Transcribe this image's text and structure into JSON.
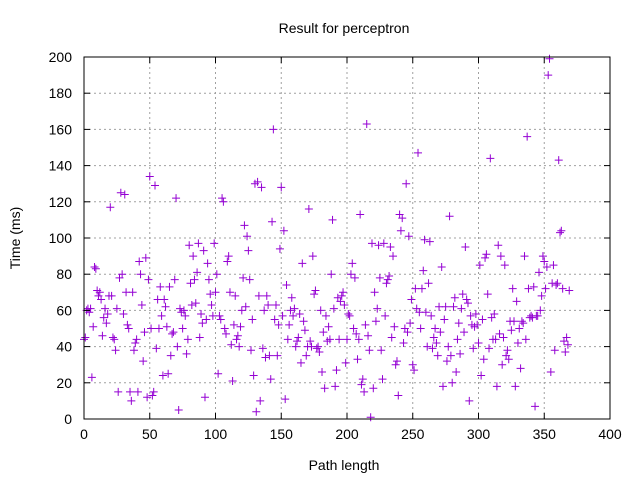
{
  "chart_data": {
    "type": "scatter",
    "title": "Result for perceptron",
    "xlabel": "Path length",
    "ylabel": "Time (ms)",
    "xlim": [
      0,
      400
    ],
    "ylim": [
      0,
      200
    ],
    "xticks": [
      0,
      50,
      100,
      150,
      200,
      250,
      300,
      350,
      400
    ],
    "yticks": [
      0,
      20,
      40,
      60,
      80,
      100,
      120,
      140,
      160,
      180,
      200
    ],
    "grid": true,
    "legend": "none",
    "marker": "plus",
    "color": "#9400d3",
    "points": [
      [
        0,
        44
      ],
      [
        1,
        45
      ],
      [
        2,
        60
      ],
      [
        3,
        61
      ],
      [
        4,
        59
      ],
      [
        5,
        61
      ],
      [
        6,
        23
      ],
      [
        7,
        51
      ],
      [
        8,
        84
      ],
      [
        9,
        83
      ],
      [
        10,
        71
      ],
      [
        11,
        68
      ],
      [
        12,
        70
      ],
      [
        13,
        66
      ],
      [
        14,
        46
      ],
      [
        15,
        56
      ],
      [
        16,
        61
      ],
      [
        17,
        53
      ],
      [
        18,
        58
      ],
      [
        19,
        68
      ],
      [
        20,
        117
      ],
      [
        21,
        68
      ],
      [
        22,
        45
      ],
      [
        23,
        44
      ],
      [
        24,
        38
      ],
      [
        25,
        61
      ],
      [
        26,
        15
      ],
      [
        27,
        78
      ],
      [
        28,
        125
      ],
      [
        29,
        80
      ],
      [
        30,
        58
      ],
      [
        31,
        124
      ],
      [
        32,
        70
      ],
      [
        33,
        52
      ],
      [
        34,
        50
      ],
      [
        35,
        15
      ],
      [
        36,
        10
      ],
      [
        37,
        70
      ],
      [
        38,
        38
      ],
      [
        39,
        42
      ],
      [
        40,
        44
      ],
      [
        41,
        15
      ],
      [
        42,
        87
      ],
      [
        43,
        80
      ],
      [
        44,
        63
      ],
      [
        45,
        32
      ],
      [
        46,
        48
      ],
      [
        47,
        89
      ],
      [
        48,
        12
      ],
      [
        49,
        77
      ],
      [
        50,
        134
      ],
      [
        51,
        50
      ],
      [
        52,
        13
      ],
      [
        53,
        15
      ],
      [
        54,
        129
      ],
      [
        55,
        39
      ],
      [
        56,
        66
      ],
      [
        57,
        50
      ],
      [
        58,
        73
      ],
      [
        59,
        57
      ],
      [
        60,
        24
      ],
      [
        61,
        66
      ],
      [
        62,
        62
      ],
      [
        63,
        51
      ],
      [
        64,
        25
      ],
      [
        65,
        73
      ],
      [
        66,
        35
      ],
      [
        67,
        47
      ],
      [
        68,
        48
      ],
      [
        69,
        77
      ],
      [
        70,
        122
      ],
      [
        71,
        40
      ],
      [
        72,
        5
      ],
      [
        73,
        61
      ],
      [
        74,
        59
      ],
      [
        75,
        50
      ],
      [
        76,
        60
      ],
      [
        77,
        57
      ],
      [
        78,
        36
      ],
      [
        79,
        44
      ],
      [
        80,
        96
      ],
      [
        81,
        75
      ],
      [
        82,
        63
      ],
      [
        83,
        90
      ],
      [
        84,
        77
      ],
      [
        85,
        64
      ],
      [
        86,
        81
      ],
      [
        87,
        97
      ],
      [
        88,
        45
      ],
      [
        89,
        58
      ],
      [
        90,
        53
      ],
      [
        91,
        93
      ],
      [
        92,
        12
      ],
      [
        93,
        55
      ],
      [
        94,
        86
      ],
      [
        95,
        77
      ],
      [
        96,
        69
      ],
      [
        97,
        63
      ],
      [
        98,
        57
      ],
      [
        99,
        97
      ],
      [
        100,
        70
      ],
      [
        101,
        80
      ],
      [
        102,
        25
      ],
      [
        103,
        57
      ],
      [
        104,
        55
      ],
      [
        105,
        122
      ],
      [
        106,
        120
      ],
      [
        107,
        50
      ],
      [
        108,
        47
      ],
      [
        109,
        87
      ],
      [
        110,
        90
      ],
      [
        111,
        70
      ],
      [
        112,
        41
      ],
      [
        113,
        21
      ],
      [
        114,
        52
      ],
      [
        115,
        68
      ],
      [
        116,
        44
      ],
      [
        117,
        46
      ],
      [
        118,
        40
      ],
      [
        119,
        51
      ],
      [
        120,
        60
      ],
      [
        121,
        78
      ],
      [
        122,
        107
      ],
      [
        123,
        62
      ],
      [
        124,
        101
      ],
      [
        125,
        93
      ],
      [
        126,
        77
      ],
      [
        127,
        38
      ],
      [
        128,
        55
      ],
      [
        129,
        24
      ],
      [
        130,
        130
      ],
      [
        131,
        4
      ],
      [
        132,
        131
      ],
      [
        133,
        68
      ],
      [
        134,
        10
      ],
      [
        135,
        128
      ],
      [
        136,
        39
      ],
      [
        137,
        60
      ],
      [
        138,
        34
      ],
      [
        139,
        68
      ],
      [
        140,
        63
      ],
      [
        141,
        35
      ],
      [
        142,
        22
      ],
      [
        143,
        109
      ],
      [
        144,
        160
      ],
      [
        145,
        55
      ],
      [
        146,
        63
      ],
      [
        147,
        35
      ],
      [
        148,
        52
      ],
      [
        149,
        94
      ],
      [
        150,
        128
      ],
      [
        151,
        57
      ],
      [
        152,
        104
      ],
      [
        153,
        11
      ],
      [
        154,
        74
      ],
      [
        155,
        44
      ],
      [
        156,
        52
      ],
      [
        157,
        60
      ],
      [
        158,
        67
      ],
      [
        159,
        57
      ],
      [
        160,
        61
      ],
      [
        161,
        40
      ],
      [
        162,
        43
      ],
      [
        163,
        45
      ],
      [
        164,
        58
      ],
      [
        165,
        31
      ],
      [
        166,
        86
      ],
      [
        167,
        54
      ],
      [
        168,
        49
      ],
      [
        169,
        35
      ],
      [
        170,
        40
      ],
      [
        171,
        116
      ],
      [
        172,
        43
      ],
      [
        173,
        40
      ],
      [
        174,
        90
      ],
      [
        175,
        69
      ],
      [
        176,
        71
      ],
      [
        177,
        39
      ],
      [
        178,
        40
      ],
      [
        179,
        37
      ],
      [
        180,
        60
      ],
      [
        181,
        26
      ],
      [
        182,
        48
      ],
      [
        183,
        17
      ],
      [
        184,
        57
      ],
      [
        185,
        43
      ],
      [
        186,
        51
      ],
      [
        187,
        44
      ],
      [
        188,
        80
      ],
      [
        189,
        110
      ],
      [
        190,
        61
      ],
      [
        191,
        18
      ],
      [
        192,
        27
      ],
      [
        193,
        67
      ],
      [
        194,
        44
      ],
      [
        195,
        65
      ],
      [
        196,
        68
      ],
      [
        197,
        70
      ],
      [
        198,
        63
      ],
      [
        199,
        31
      ],
      [
        200,
        44
      ],
      [
        201,
        58
      ],
      [
        202,
        57
      ],
      [
        203,
        80
      ],
      [
        204,
        86
      ],
      [
        205,
        50
      ],
      [
        206,
        78
      ],
      [
        207,
        47
      ],
      [
        208,
        33
      ],
      [
        209,
        44
      ],
      [
        210,
        113
      ],
      [
        211,
        19
      ],
      [
        212,
        22
      ],
      [
        213,
        15
      ],
      [
        214,
        52
      ],
      [
        215,
        163
      ],
      [
        216,
        46
      ],
      [
        217,
        38
      ],
      [
        218,
        1
      ],
      [
        219,
        97
      ],
      [
        220,
        17
      ],
      [
        221,
        70
      ],
      [
        222,
        54
      ],
      [
        223,
        61
      ],
      [
        224,
        96
      ],
      [
        225,
        78
      ],
      [
        226,
        38
      ],
      [
        227,
        22
      ],
      [
        228,
        97
      ],
      [
        229,
        57
      ],
      [
        230,
        75
      ],
      [
        231,
        77
      ],
      [
        232,
        79
      ],
      [
        233,
        95
      ],
      [
        234,
        45
      ],
      [
        235,
        90
      ],
      [
        236,
        51
      ],
      [
        237,
        30
      ],
      [
        238,
        32
      ],
      [
        239,
        13
      ],
      [
        240,
        113
      ],
      [
        241,
        104
      ],
      [
        242,
        111
      ],
      [
        243,
        42
      ],
      [
        244,
        50
      ],
      [
        245,
        130
      ],
      [
        246,
        48
      ],
      [
        247,
        101
      ],
      [
        248,
        53
      ],
      [
        249,
        66
      ],
      [
        250,
        30
      ],
      [
        251,
        27
      ],
      [
        252,
        72
      ],
      [
        253,
        61
      ],
      [
        254,
        147
      ],
      [
        255,
        59
      ],
      [
        256,
        50
      ],
      [
        257,
        72
      ],
      [
        258,
        82
      ],
      [
        259,
        99
      ],
      [
        260,
        59
      ],
      [
        261,
        40
      ],
      [
        262,
        75
      ],
      [
        263,
        98
      ],
      [
        264,
        57
      ],
      [
        265,
        39
      ],
      [
        266,
        45
      ],
      [
        267,
        50
      ],
      [
        268,
        42
      ],
      [
        269,
        35
      ],
      [
        270,
        62
      ],
      [
        271,
        48
      ],
      [
        272,
        84
      ],
      [
        273,
        18
      ],
      [
        274,
        55
      ],
      [
        275,
        62
      ],
      [
        276,
        32
      ],
      [
        277,
        40
      ],
      [
        278,
        112
      ],
      [
        279,
        35
      ],
      [
        280,
        20
      ],
      [
        281,
        62
      ],
      [
        282,
        67
      ],
      [
        283,
        26
      ],
      [
        284,
        44
      ],
      [
        285,
        53
      ],
      [
        286,
        36
      ],
      [
        287,
        61
      ],
      [
        288,
        69
      ],
      [
        289,
        48
      ],
      [
        290,
        95
      ],
      [
        291,
        66
      ],
      [
        292,
        64
      ],
      [
        293,
        10
      ],
      [
        294,
        57
      ],
      [
        295,
        52
      ],
      [
        296,
        39
      ],
      [
        297,
        51
      ],
      [
        298,
        58
      ],
      [
        299,
        52
      ],
      [
        300,
        42
      ],
      [
        301,
        85
      ],
      [
        302,
        24
      ],
      [
        303,
        55
      ],
      [
        304,
        33
      ],
      [
        305,
        89
      ],
      [
        306,
        91
      ],
      [
        307,
        69
      ],
      [
        308,
        39
      ],
      [
        309,
        144
      ],
      [
        310,
        56
      ],
      [
        311,
        44
      ],
      [
        312,
        58
      ],
      [
        313,
        44
      ],
      [
        314,
        18
      ],
      [
        315,
        96
      ],
      [
        316,
        47
      ],
      [
        317,
        90
      ],
      [
        318,
        30
      ],
      [
        319,
        45
      ],
      [
        320,
        85
      ],
      [
        321,
        35
      ],
      [
        322,
        38
      ],
      [
        323,
        33
      ],
      [
        324,
        54
      ],
      [
        325,
        49
      ],
      [
        326,
        72
      ],
      [
        327,
        54
      ],
      [
        328,
        18
      ],
      [
        329,
        65
      ],
      [
        330,
        42
      ],
      [
        331,
        50
      ],
      [
        332,
        28
      ],
      [
        333,
        54
      ],
      [
        334,
        53
      ],
      [
        335,
        90
      ],
      [
        336,
        44
      ],
      [
        337,
        156
      ],
      [
        338,
        72
      ],
      [
        339,
        56
      ],
      [
        340,
        57
      ],
      [
        341,
        56
      ],
      [
        342,
        73
      ],
      [
        343,
        7
      ],
      [
        344,
        57
      ],
      [
        345,
        57
      ],
      [
        346,
        81
      ],
      [
        347,
        60
      ],
      [
        348,
        68
      ],
      [
        349,
        90
      ],
      [
        350,
        87
      ],
      [
        351,
        72
      ],
      [
        352,
        84
      ],
      [
        353,
        190
      ],
      [
        354,
        199
      ],
      [
        355,
        26
      ],
      [
        356,
        75
      ],
      [
        357,
        85
      ],
      [
        358,
        38
      ],
      [
        359,
        74
      ],
      [
        360,
        75
      ],
      [
        361,
        143
      ],
      [
        362,
        103
      ],
      [
        363,
        104
      ],
      [
        364,
        72
      ],
      [
        365,
        43
      ],
      [
        366,
        37
      ],
      [
        367,
        45
      ],
      [
        368,
        41
      ],
      [
        369,
        71
      ]
    ]
  }
}
